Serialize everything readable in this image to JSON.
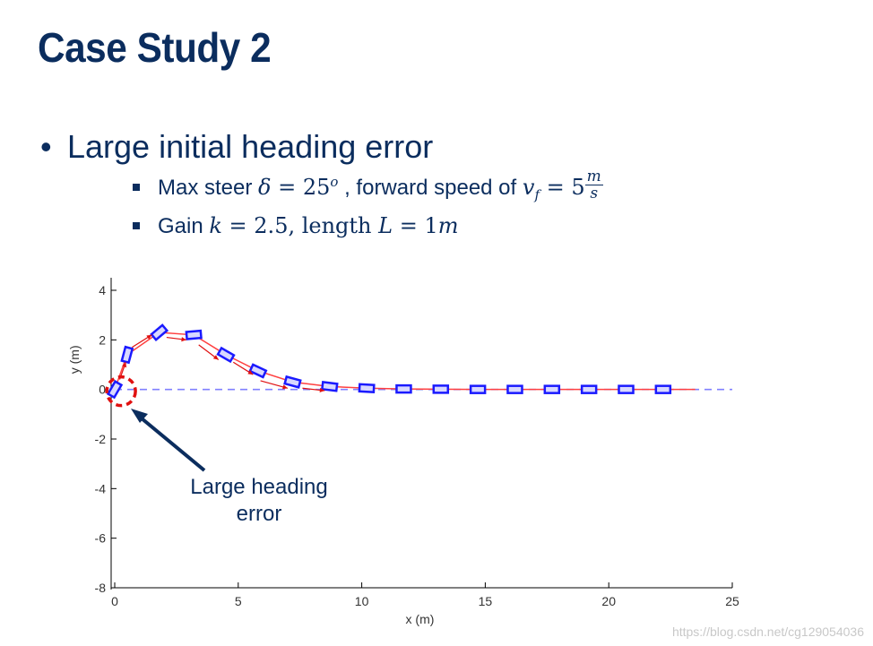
{
  "slide": {
    "title": "Case Study 2",
    "bullet": "Large initial heading error",
    "sub1": {
      "prefix": "Max steer ",
      "delta": "δ",
      "eq1": " = 25",
      "deg": "o",
      "mid": " , forward speed of ",
      "v": "v",
      "vsub": "f",
      "eq2": " = 5",
      "num": "m",
      "den": "s"
    },
    "sub2": {
      "prefix": "Gain ",
      "k": "k",
      "eq1": " = 2.5, length ",
      "L": "L",
      "eq2": " = 1",
      "m": "m"
    },
    "annotation": [
      "Large heading",
      "error"
    ],
    "watermark": "https://blog.csdn.net/cg129054036"
  },
  "chart_data": {
    "type": "line",
    "xlabel": "x (m)",
    "ylabel": "y (m)",
    "xlim": [
      0,
      25
    ],
    "ylim": [
      -8,
      4
    ],
    "xticks": [
      0,
      5,
      10,
      15,
      20,
      25
    ],
    "yticks": [
      4,
      2,
      0,
      -2,
      -4,
      -6,
      -8
    ],
    "reference_path": {
      "y": 0,
      "color": "#8080ff",
      "style": "dashed"
    },
    "trajectory": {
      "color": "#ff4040",
      "x": [
        0,
        0.5,
        1.8,
        3.2,
        4.5,
        5.8,
        7.2,
        8.7,
        10.2,
        11.7,
        13.2,
        14.7,
        16.2,
        17.7,
        19.2,
        20.7,
        22.2,
        23.5
      ],
      "y": [
        0,
        1.4,
        2.3,
        2.2,
        1.4,
        0.75,
        0.3,
        0.12,
        0.05,
        0.02,
        0.01,
        0,
        0,
        0,
        0,
        0,
        0,
        0
      ]
    },
    "vehicles": {
      "color": "#1a1aff",
      "poses": [
        {
          "x": 0.0,
          "y": 0.0,
          "heading_deg": 60
        },
        {
          "x": 0.5,
          "y": 1.4,
          "heading_deg": 75
        },
        {
          "x": 1.8,
          "y": 2.3,
          "heading_deg": 40
        },
        {
          "x": 3.2,
          "y": 2.2,
          "heading_deg": 5
        },
        {
          "x": 4.5,
          "y": 1.4,
          "heading_deg": -30
        },
        {
          "x": 5.8,
          "y": 0.75,
          "heading_deg": -25
        },
        {
          "x": 7.2,
          "y": 0.3,
          "heading_deg": -15
        },
        {
          "x": 8.7,
          "y": 0.12,
          "heading_deg": -7
        },
        {
          "x": 10.2,
          "y": 0.05,
          "heading_deg": -3
        },
        {
          "x": 11.7,
          "y": 0.02,
          "heading_deg": 0
        },
        {
          "x": 13.2,
          "y": 0.01,
          "heading_deg": 0
        },
        {
          "x": 14.7,
          "y": 0,
          "heading_deg": 0
        },
        {
          "x": 16.2,
          "y": 0,
          "heading_deg": 0
        },
        {
          "x": 17.7,
          "y": 0,
          "heading_deg": 0
        },
        {
          "x": 19.2,
          "y": 0,
          "heading_deg": 0
        },
        {
          "x": 20.7,
          "y": 0,
          "heading_deg": 0
        },
        {
          "x": 22.2,
          "y": 0,
          "heading_deg": 0
        }
      ]
    },
    "arrows": {
      "color": "#e01010",
      "segments": [
        {
          "from": [
            0.2,
            0.4
          ],
          "to": [
            0.45,
            1.1
          ]
        },
        {
          "from": [
            0.7,
            1.7
          ],
          "to": [
            1.5,
            2.2
          ]
        },
        {
          "from": [
            2.1,
            2.1
          ],
          "to": [
            2.9,
            2.0
          ]
        },
        {
          "from": [
            3.4,
            1.8
          ],
          "to": [
            4.2,
            1.2
          ]
        },
        {
          "from": [
            4.8,
            1.1
          ],
          "to": [
            5.6,
            0.6
          ]
        },
        {
          "from": [
            5.9,
            0.35
          ],
          "to": [
            7.0,
            0.05
          ]
        },
        {
          "from": [
            7.6,
            0.05
          ],
          "to": [
            8.5,
            -0.05
          ]
        }
      ]
    },
    "highlight_circle": {
      "x": 0.15,
      "y": 0.0,
      "color": "#e01010"
    }
  }
}
